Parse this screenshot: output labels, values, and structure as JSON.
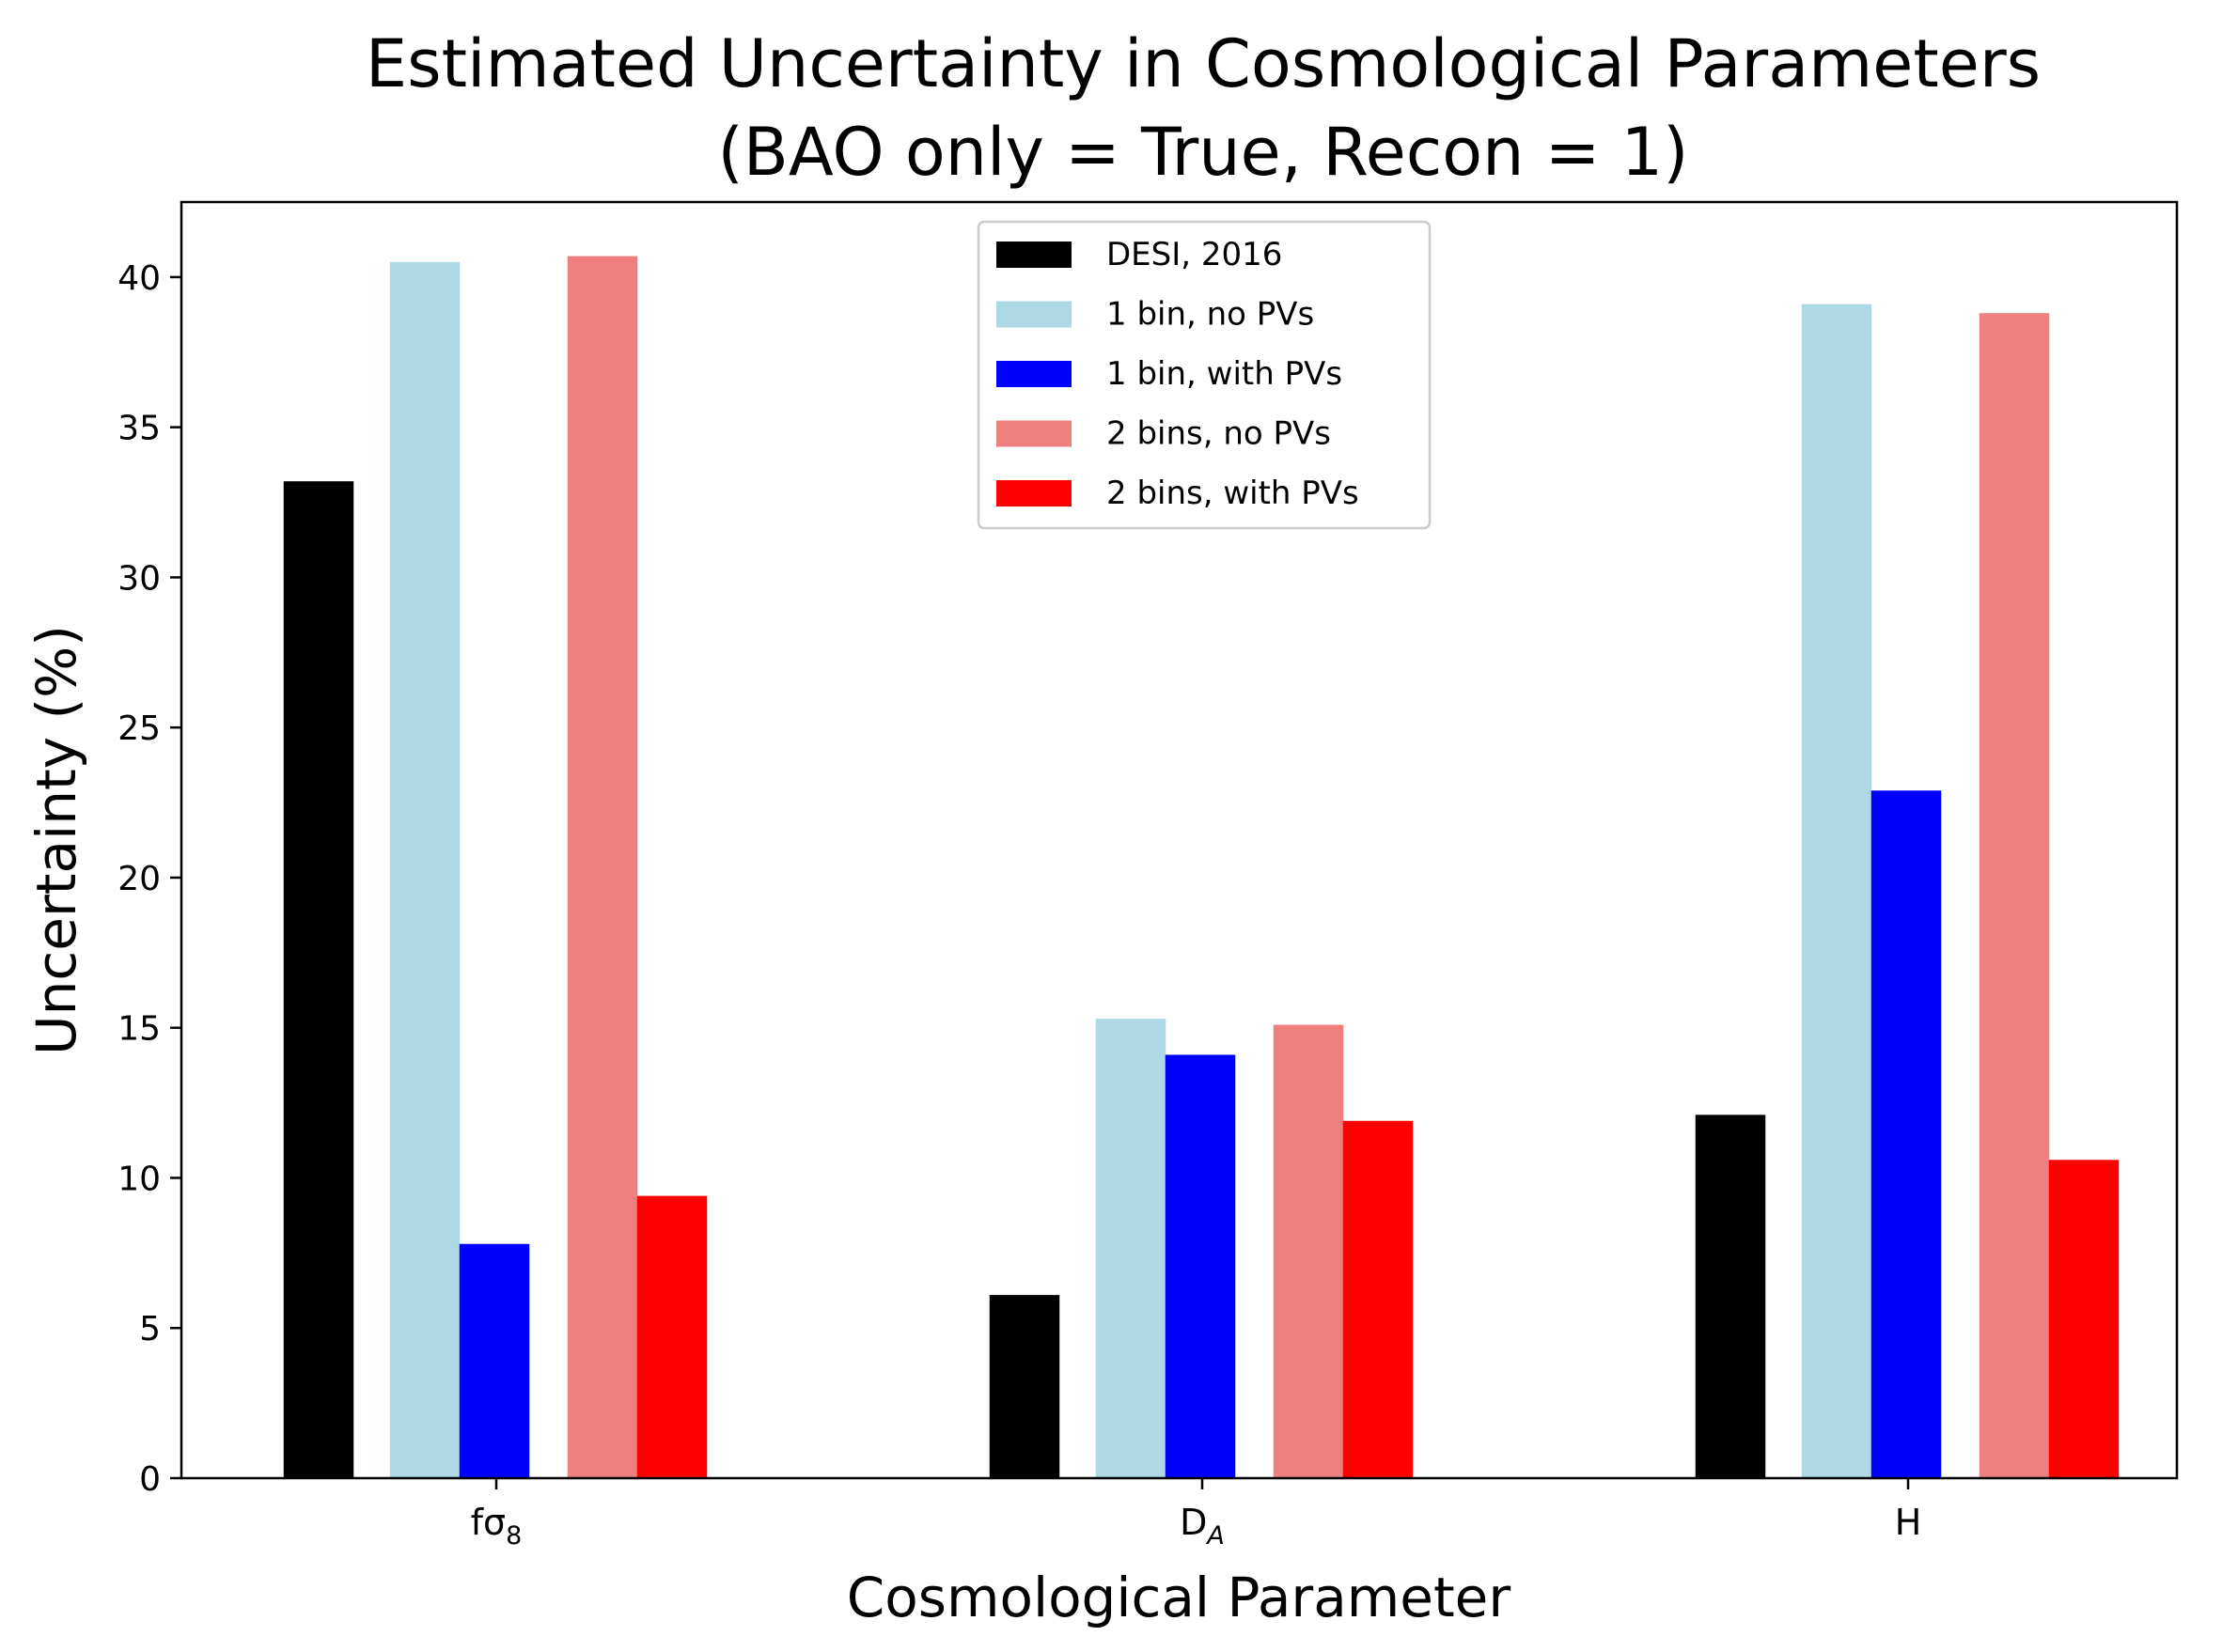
{
  "chart_data": {
    "type": "bar",
    "title_line1": "Estimated Uncertainty in Cosmological Parameters",
    "title_line2": "(BAO only = True, Recon = 1)",
    "xlabel": "Cosmological Parameter",
    "ylabel": "Uncertainty (%)",
    "categories": [
      {
        "base": "fσ",
        "sub": "8"
      },
      {
        "base": "D",
        "sub": "A"
      },
      {
        "base": "H",
        "sub": ""
      }
    ],
    "ylim": [
      0,
      42.5
    ],
    "yticks": [
      "0",
      "5",
      "10",
      "15",
      "20",
      "25",
      "30",
      "35",
      "40"
    ],
    "legend_position": "upper center",
    "series": [
      {
        "name": "DESI, 2016",
        "color": "#000000",
        "values": [
          33.2,
          6.1,
          12.1
        ]
      },
      {
        "name": "1 bin, no PVs",
        "color": "#add8e6",
        "values": [
          40.5,
          15.3,
          39.1
        ]
      },
      {
        "name": "1 bin, with PVs",
        "color": "#0000ff",
        "values": [
          7.8,
          14.1,
          22.9
        ]
      },
      {
        "name": "2 bins, no PVs",
        "color": "#f08080",
        "values": [
          40.7,
          15.1,
          38.8
        ]
      },
      {
        "name": "2 bins, with PVs",
        "color": "#ff0000",
        "values": [
          9.4,
          11.9,
          10.6
        ]
      }
    ]
  }
}
